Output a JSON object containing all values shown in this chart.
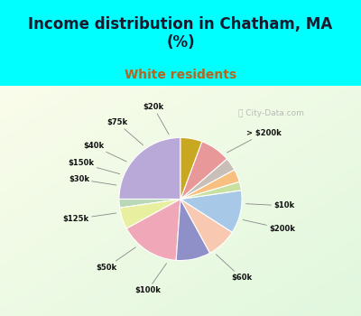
{
  "title": "Income distribution in Chatham, MA\n(%)",
  "subtitle": "White residents",
  "title_color": "#1a1a2e",
  "subtitle_color": "#b5651d",
  "bg_cyan": "#00ffff",
  "labels": [
    "> $200k",
    "$10k",
    "$200k",
    "$60k",
    "$100k",
    "$50k",
    "$125k",
    "$30k",
    "$150k",
    "$40k",
    "$75k",
    "$20k"
  ],
  "values": [
    22,
    2,
    5,
    14,
    8,
    7,
    10,
    2,
    3,
    3,
    7,
    5
  ],
  "colors": [
    "#b8a9d9",
    "#b8d8b8",
    "#e8f0a0",
    "#f0a8b8",
    "#9090c8",
    "#f8c8b0",
    "#a8c8e8",
    "#c8e0a0",
    "#f8c080",
    "#c8c0b8",
    "#e89898",
    "#c8a820"
  ],
  "start_angle": 90,
  "title_fontsize": 12,
  "subtitle_fontsize": 10
}
